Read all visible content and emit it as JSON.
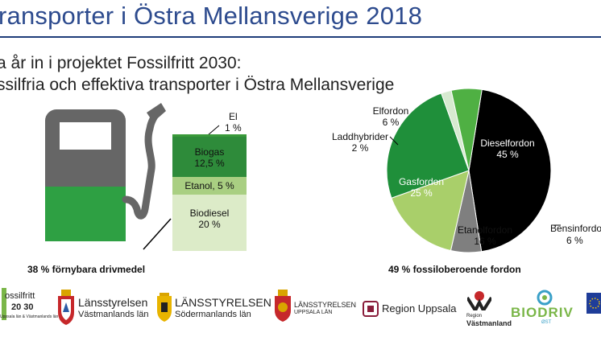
{
  "slide": {
    "title": "ransporter i Östra Mellansverige 2018",
    "subtitle_line1": "a år in i projektet Fossilfritt 2030:",
    "subtitle_line2": "ssilfria och effektiva transporter i Östra Mellansverige"
  },
  "fuel_chart": {
    "caption": "38 % förnybara drivmedel",
    "segments": [
      {
        "label": "El",
        "value_label": "1 %",
        "color": "#3a9a3a"
      },
      {
        "label": "Biogas",
        "value_label": "12,5 %",
        "color": "#2e8b3a"
      },
      {
        "label": "Etanol, 5 %",
        "color": "#a9cf82"
      },
      {
        "label": "Biodiesel",
        "value_label": "20 %",
        "color": "#dcebc8"
      }
    ]
  },
  "chart_data": {
    "type": "pie",
    "title": "",
    "caption": "49 % fossiloberoende fordon",
    "slices": [
      {
        "name": "Dieselfordon",
        "value": 45,
        "value_label": "45 %",
        "color": "#000000"
      },
      {
        "name": "Bensinfordon",
        "value": 6,
        "value_label": "6 %",
        "color": "#7f7f7f"
      },
      {
        "name": "Etanolfordon",
        "value": 16,
        "value_label": "16 %",
        "color": "#a9cf6a"
      },
      {
        "name": "Gasfordon",
        "value": 25,
        "value_label": "25 %",
        "color": "#1f8f3a"
      },
      {
        "name": "Laddhybrider",
        "value": 2,
        "value_label": "2 %",
        "color": "#d6ead0"
      },
      {
        "name": "Elfordon",
        "value": 6,
        "value_label": "6 %",
        "color": "#4fb043"
      }
    ]
  },
  "logos": {
    "fossilfritt": "ossilfritt",
    "fossilfritt_year": "20 30",
    "fossilfritt_small": "Uppsala län & Västmanlands län",
    "vastmanland_name": "Länsstyrelsen",
    "vastmanland_sub": "Västmanlands län",
    "sodermanland_name": "LÄNSSTYRELSEN",
    "sodermanland_sub": "Södermanlands län",
    "uppsala_lan_name": "LÄNSSTYRELSEN",
    "uppsala_lan_sub": "UPPSALA LÄN",
    "region_uppsala": "Region Uppsala",
    "region_vastmanland_small": "Region",
    "region_vastmanland": "Västmanland",
    "biodriv": "BIODRIV",
    "biodriv_sub": "ØST"
  }
}
